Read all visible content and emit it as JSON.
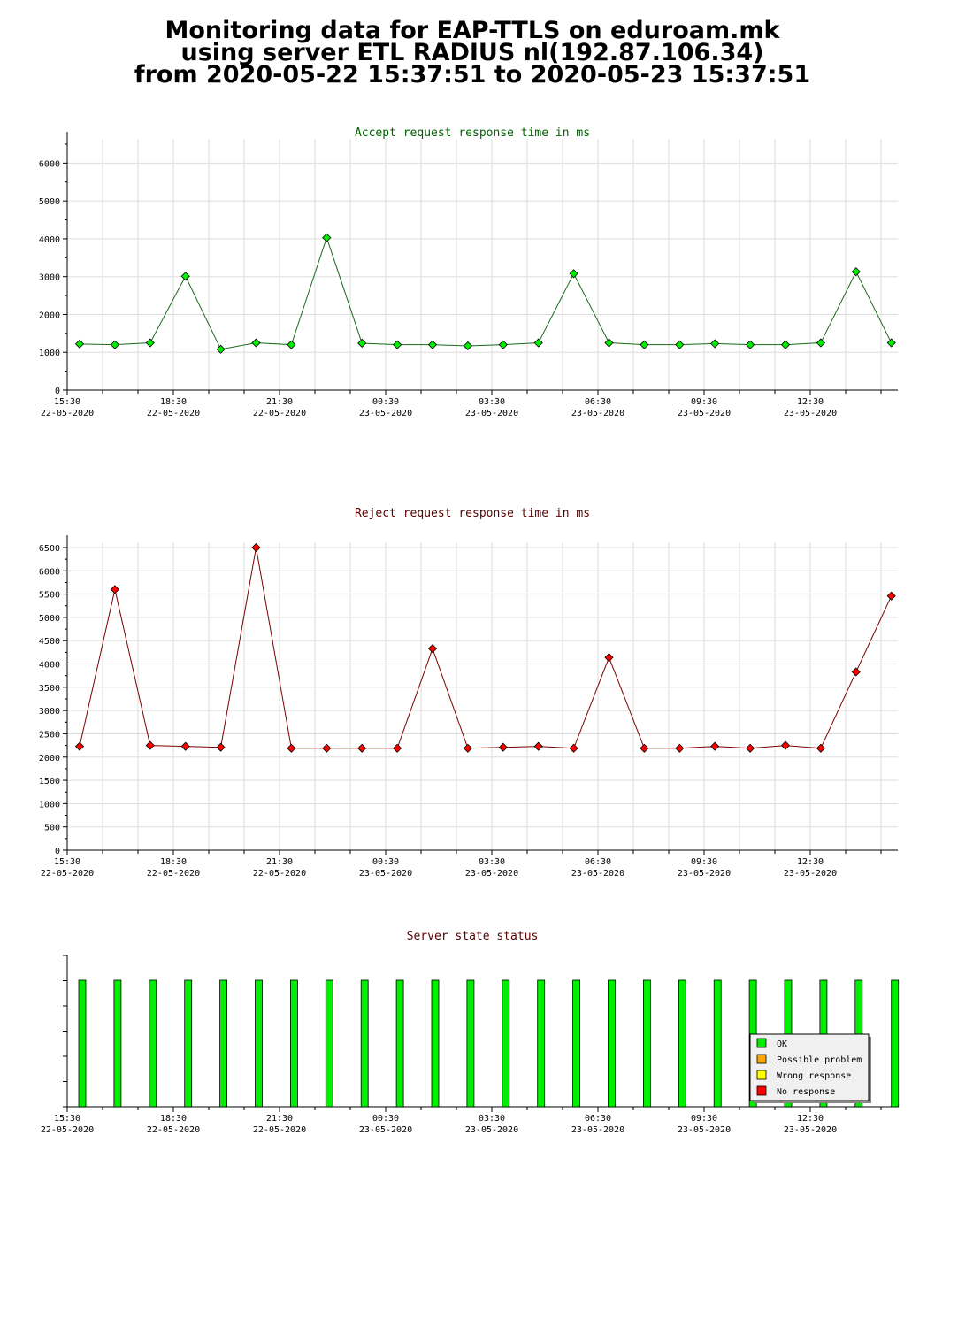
{
  "title_lines": [
    "Monitoring data for EAP-TTLS on eduroam.mk",
    "using server ETL RADIUS nl(192.87.106.34)",
    "from 2020-05-22 15:37:51 to 2020-05-23 15:37:51"
  ],
  "colors": {
    "accept_series": "#1a6b1a",
    "accept_marker": "#00ee00",
    "reject_series": "#7a0000",
    "reject_marker": "#ff0000",
    "ok": "#00ee00",
    "possible_problem": "#ffa500",
    "wrong_response": "#ffff00",
    "no_response": "#ff0000",
    "grid": "#dddddd"
  },
  "chart_data": [
    {
      "type": "line",
      "title": "Accept request response time in ms",
      "title_color": "#006400",
      "xlabel": "",
      "ylabel": "",
      "ylim": [
        0,
        6500
      ],
      "yticks": [
        0,
        1000,
        2000,
        3000,
        4000,
        5000,
        6000
      ],
      "xticks": [
        {
          "time": "15:30",
          "date": "22-05-2020"
        },
        {
          "time": "18:30",
          "date": "22-05-2020"
        },
        {
          "time": "21:30",
          "date": "22-05-2020"
        },
        {
          "time": "00:30",
          "date": "23-05-2020"
        },
        {
          "time": "03:30",
          "date": "23-05-2020"
        },
        {
          "time": "06:30",
          "date": "23-05-2020"
        },
        {
          "time": "09:30",
          "date": "23-05-2020"
        },
        {
          "time": "12:30",
          "date": "23-05-2020"
        }
      ],
      "grid": true,
      "series": [
        {
          "values": [
            1220,
            1200,
            1250,
            3010,
            1080,
            1250,
            1200,
            4030,
            1240,
            1200,
            1200,
            1170,
            1200,
            1250,
            3080,
            1250,
            1200,
            1200,
            1230,
            1200,
            1200,
            1250,
            3130,
            1250
          ]
        }
      ]
    },
    {
      "type": "line",
      "title": "Reject request response time in ms",
      "title_color": "#5a0000",
      "xlabel": "",
      "ylabel": "",
      "ylim": [
        0,
        6500
      ],
      "yticks": [
        0,
        500,
        1000,
        1500,
        2000,
        2500,
        3000,
        3500,
        4000,
        4500,
        5000,
        5500,
        6000,
        6500
      ],
      "xticks": [
        {
          "time": "15:30",
          "date": "22-05-2020"
        },
        {
          "time": "18:30",
          "date": "22-05-2020"
        },
        {
          "time": "21:30",
          "date": "22-05-2020"
        },
        {
          "time": "00:30",
          "date": "23-05-2020"
        },
        {
          "time": "03:30",
          "date": "23-05-2020"
        },
        {
          "time": "06:30",
          "date": "23-05-2020"
        },
        {
          "time": "09:30",
          "date": "23-05-2020"
        },
        {
          "time": "12:30",
          "date": "23-05-2020"
        }
      ],
      "grid": true,
      "series": [
        {
          "values": [
            2230,
            5600,
            2250,
            2230,
            2210,
            6500,
            2190,
            2190,
            2190,
            2190,
            4330,
            2190,
            2210,
            2230,
            2190,
            4140,
            2190,
            2190,
            2230,
            2190,
            2250,
            2190,
            3830,
            5460
          ]
        }
      ]
    },
    {
      "type": "bar",
      "title": "Server state status",
      "title_color": "#5a0000",
      "xticks": [
        {
          "time": "15:30",
          "date": "22-05-2020"
        },
        {
          "time": "18:30",
          "date": "22-05-2020"
        },
        {
          "time": "21:30",
          "date": "22-05-2020"
        },
        {
          "time": "00:30",
          "date": "23-05-2020"
        },
        {
          "time": "03:30",
          "date": "23-05-2020"
        },
        {
          "time": "06:30",
          "date": "23-05-2020"
        },
        {
          "time": "09:30",
          "date": "23-05-2020"
        },
        {
          "time": "12:30",
          "date": "23-05-2020"
        }
      ],
      "legend_position": "bottom-right",
      "legend": [
        {
          "label": "OK",
          "color": "#00ee00"
        },
        {
          "label": "Possible problem",
          "color": "#ffa500"
        },
        {
          "label": "Wrong response",
          "color": "#ffff00"
        },
        {
          "label": "No response",
          "color": "#ff0000"
        }
      ],
      "states": [
        "OK",
        "OK",
        "OK",
        "OK",
        "OK",
        "OK",
        "OK",
        "OK",
        "OK",
        "OK",
        "OK",
        "OK",
        "OK",
        "OK",
        "OK",
        "OK",
        "OK",
        "OK",
        "OK",
        "OK",
        "OK",
        "OK",
        "OK",
        "OK"
      ]
    }
  ]
}
